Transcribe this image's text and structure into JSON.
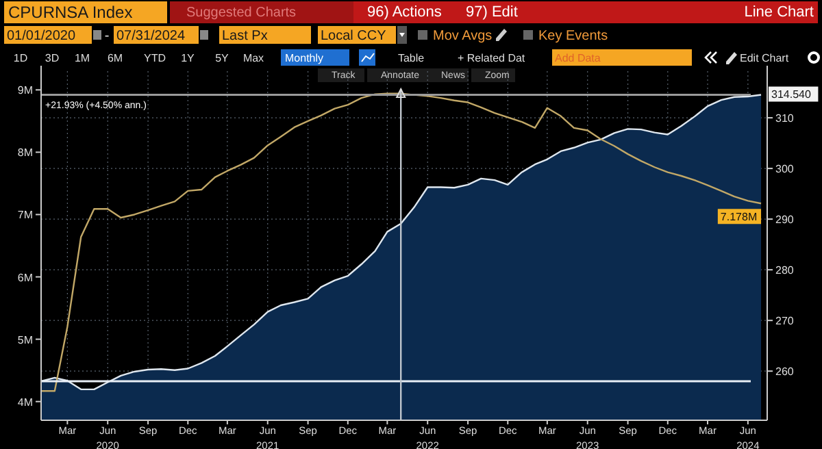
{
  "chart_data": {
    "type": "line",
    "title": "CPURNSA Index",
    "annotations": [
      "+21.93% (+4.50% ann.)",
      "Suggested Charts",
      "96) Actions",
      "97) Edit",
      "Line Chart",
      "01/01/2020",
      "-",
      "07/31/2024",
      "Last Px",
      "Local CCY",
      "Mov Avgs",
      "Key Events",
      "1D",
      "3D",
      "1M",
      "6M",
      "YTD",
      "1Y",
      "5Y",
      "Max",
      "Monthly",
      "Table",
      "+ Related Dat",
      "Add Data",
      "Edit Chart",
      "Track",
      "Annotate",
      "News",
      "Zoom"
    ],
    "x": [
      "2020-01",
      "2020-02",
      "2020-03",
      "2020-04",
      "2020-05",
      "2020-06",
      "2020-07",
      "2020-08",
      "2020-09",
      "2020-10",
      "2020-11",
      "2020-12",
      "2021-01",
      "2021-02",
      "2021-03",
      "2021-04",
      "2021-05",
      "2021-06",
      "2021-07",
      "2021-08",
      "2021-09",
      "2021-10",
      "2021-11",
      "2021-12",
      "2022-01",
      "2022-02",
      "2022-03",
      "2022-04",
      "2022-05",
      "2022-06",
      "2022-07",
      "2022-08",
      "2022-09",
      "2022-10",
      "2022-11",
      "2022-12",
      "2023-01",
      "2023-02",
      "2023-03",
      "2023-04",
      "2023-05",
      "2023-06",
      "2023-07",
      "2023-08",
      "2023-09",
      "2023-10",
      "2023-11",
      "2023-12",
      "2024-01",
      "2024-02",
      "2024-03",
      "2024-04",
      "2024-05",
      "2024-06",
      "2024-07"
    ],
    "series": [
      {
        "type": "area",
        "axis": "y2",
        "color": "#dfe7ef",
        "values": [
          258.0,
          258.7,
          258.1,
          256.4,
          256.4,
          257.8,
          259.1,
          259.9,
          260.3,
          260.4,
          260.2,
          260.5,
          261.6,
          263.0,
          264.9,
          267.1,
          269.2,
          271.7,
          273.0,
          273.6,
          274.3,
          276.6,
          277.9,
          278.8,
          281.1,
          283.7,
          287.5,
          289.1,
          292.3,
          296.3,
          296.3,
          296.2,
          296.8,
          298.0,
          297.7,
          296.8,
          299.2,
          300.8,
          301.8,
          303.4,
          304.1,
          305.1,
          305.7,
          307.0,
          307.8,
          307.7,
          307.1,
          306.7,
          308.4,
          310.3,
          312.3,
          313.5,
          314.1,
          314.2,
          314.54
        ],
        "value_labels": [
          null,
          null,
          null,
          null,
          null,
          null,
          null,
          null,
          null,
          null,
          null,
          null,
          null,
          null,
          null,
          null,
          null,
          null,
          null,
          null,
          null,
          null,
          null,
          null,
          null,
          null,
          null,
          null,
          null,
          null,
          null,
          null,
          null,
          null,
          null,
          null,
          null,
          null,
          null,
          null,
          null,
          null,
          null,
          null,
          null,
          null,
          null,
          null,
          null,
          null,
          null,
          null,
          null,
          null,
          "314.540"
        ]
      },
      {
        "type": "line",
        "color": "#c2a867",
        "values": [
          4.17,
          4.17,
          5.2,
          6.64,
          7.09,
          7.09,
          6.95,
          7.0,
          7.07,
          7.14,
          7.21,
          7.38,
          7.4,
          7.6,
          7.7,
          7.8,
          7.91,
          8.11,
          8.25,
          8.4,
          8.5,
          8.59,
          8.7,
          8.76,
          8.87,
          8.93,
          8.94,
          8.94,
          8.92,
          8.9,
          8.87,
          8.83,
          8.8,
          8.72,
          8.63,
          8.56,
          8.49,
          8.39,
          8.71,
          8.58,
          8.39,
          8.35,
          8.21,
          8.1,
          7.97,
          7.86,
          7.76,
          7.68,
          7.62,
          7.55,
          7.47,
          7.38,
          7.29,
          7.22,
          7.178
        ],
        "value_labels": [
          null,
          null,
          null,
          null,
          null,
          null,
          null,
          null,
          null,
          null,
          null,
          null,
          null,
          null,
          null,
          null,
          null,
          null,
          null,
          null,
          null,
          null,
          null,
          null,
          null,
          null,
          null,
          null,
          null,
          null,
          null,
          null,
          null,
          null,
          null,
          null,
          null,
          null,
          null,
          null,
          null,
          null,
          null,
          null,
          null,
          null,
          null,
          null,
          null,
          null,
          null,
          null,
          null,
          null,
          "7.178M"
        ]
      }
    ],
    "xlim": [
      "2020-01-01",
      "2024-07-15"
    ],
    "xticks": [
      {
        "value": "2020-03",
        "label": "Mar"
      },
      {
        "value": "2020-06",
        "label": "Jun\n2020"
      },
      {
        "value": "2020-09",
        "label": "Sep"
      },
      {
        "value": "2020-12",
        "label": "Dec"
      },
      {
        "value": "2021-03",
        "label": "Mar"
      },
      {
        "value": "2021-06",
        "label": "Jun\n2021"
      },
      {
        "value": "2021-09",
        "label": "Sep"
      },
      {
        "value": "2021-12",
        "label": "Dec"
      },
      {
        "value": "2022-03",
        "label": "Mar"
      },
      {
        "value": "2022-06",
        "label": "Jun\n2022"
      },
      {
        "value": "2022-09",
        "label": "Sep"
      },
      {
        "value": "2022-12",
        "label": "Dec"
      },
      {
        "value": "2023-03",
        "label": "Mar"
      },
      {
        "value": "2023-06",
        "label": "Jun\n2023"
      },
      {
        "value": "2023-09",
        "label": "Sep"
      },
      {
        "value": "2023-12",
        "label": "Dec"
      },
      {
        "value": "2024-03",
        "label": "Mar"
      },
      {
        "value": "2024-06",
        "label": "Jun\n2024"
      }
    ],
    "ylim": [
      3.7,
      9.3
    ],
    "yticks": [
      {
        "value": 4,
        "label": "4M"
      },
      {
        "value": 5,
        "label": "5M"
      },
      {
        "value": 6,
        "label": "6M"
      },
      {
        "value": 7,
        "label": "7M"
      },
      {
        "value": 8,
        "label": "8M"
      },
      {
        "value": 9,
        "label": "9M"
      }
    ],
    "y2lim": [
      250.3,
      319.2
    ],
    "y2ticks": [
      260,
      270,
      280,
      290,
      300,
      310
    ],
    "grid": true,
    "ref_lines": [
      {
        "axis": "y2",
        "value": 258,
        "color": "#e8eef5"
      },
      {
        "axis": "y2",
        "value": 314.54,
        "color": "#9a9a9a"
      },
      {
        "axis": "x",
        "value": "2022-04",
        "color": "#bfc5cc"
      }
    ]
  }
}
